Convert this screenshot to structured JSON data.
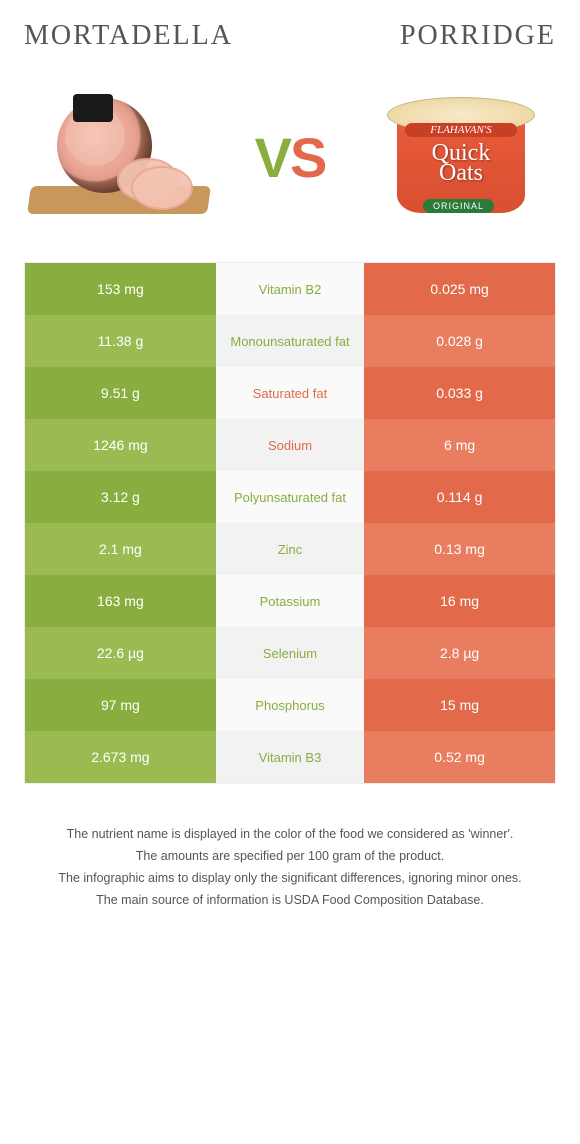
{
  "colors": {
    "left": "#8aad3f",
    "left_alt": "#9bbb52",
    "right": "#e26a4a",
    "right_alt": "#e97d5f",
    "mid_text_left": "#8aad3f",
    "mid_text_right": "#e26a4a"
  },
  "header": {
    "left_title": "MORTADELLA",
    "right_title": "PORRIDGE",
    "vs_v": "V",
    "vs_s": "S"
  },
  "porridge_label": {
    "brand": "FLAHAVAN'S",
    "product_line1": "Quick",
    "product_line2": "Oats",
    "tag": "ORIGINAL"
  },
  "rows": [
    {
      "left": "153 mg",
      "mid": "Vitamin B2",
      "right": "0.025 mg",
      "winner": "left"
    },
    {
      "left": "11.38 g",
      "mid": "Monounsaturated fat",
      "right": "0.028 g",
      "winner": "left"
    },
    {
      "left": "9.51 g",
      "mid": "Saturated fat",
      "right": "0.033 g",
      "winner": "right"
    },
    {
      "left": "1246 mg",
      "mid": "Sodium",
      "right": "6 mg",
      "winner": "right"
    },
    {
      "left": "3.12 g",
      "mid": "Polyunsaturated fat",
      "right": "0.114 g",
      "winner": "left"
    },
    {
      "left": "2.1 mg",
      "mid": "Zinc",
      "right": "0.13 mg",
      "winner": "left"
    },
    {
      "left": "163 mg",
      "mid": "Potassium",
      "right": "16 mg",
      "winner": "left"
    },
    {
      "left": "22.6 µg",
      "mid": "Selenium",
      "right": "2.8 µg",
      "winner": "left"
    },
    {
      "left": "97 mg",
      "mid": "Phosphorus",
      "right": "15 mg",
      "winner": "left"
    },
    {
      "left": "2.673 mg",
      "mid": "Vitamin B3",
      "right": "0.52 mg",
      "winner": "left"
    }
  ],
  "caption": [
    "The nutrient name is displayed in the color of the food we considered as 'winner'.",
    "The amounts are specified per 100 gram of the product.",
    "The infographic aims to display only the significant differences, ignoring minor ones.",
    "The main source of information is USDA Food Composition Database."
  ]
}
